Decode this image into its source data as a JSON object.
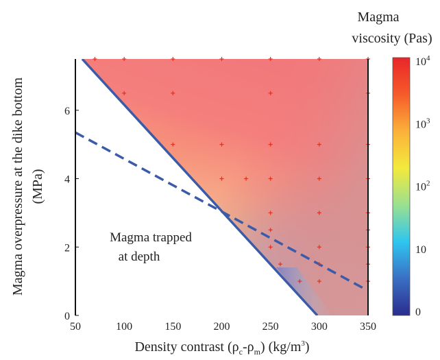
{
  "chart_data": {
    "type": "heatmap",
    "xlabel": {
      "prefix": "Density contrast (",
      "rho1": "ρ",
      "sub1": "c",
      "dash": "-",
      "rho2": "ρ",
      "sub2": "m",
      "suffix": ") (kg/m",
      "sup": "3",
      "close": ")"
    },
    "ylabel": {
      "line1": "Magma overpressure at the dike bottom",
      "line2": "(MPa)"
    },
    "xlim": [
      50,
      350
    ],
    "ylim": [
      0,
      7.5
    ],
    "x_ticks": [
      "50",
      "100",
      "150",
      "200",
      "250",
      "300",
      "350"
    ],
    "y_ticks": [
      "0",
      "2",
      "4",
      "6"
    ],
    "colorbar": {
      "title_line1": "Magma",
      "title_line2": "viscosity (Pas)",
      "scale": "log",
      "labels": [
        {
          "text": "0",
          "exp": "",
          "level": 0
        },
        {
          "text": "10",
          "exp": "",
          "level": 1
        },
        {
          "text": "10",
          "exp": "2",
          "level": 2
        },
        {
          "text": "10",
          "exp": "3",
          "level": 3
        },
        {
          "text": "10",
          "exp": "4",
          "level": 4
        }
      ],
      "colors": [
        "#2b2c8c",
        "#3a6fc4",
        "#2fc6ef",
        "#9be08f",
        "#f3ea3c",
        "#fbb13a",
        "#f65b2a",
        "#e8252a"
      ]
    },
    "annotation": {
      "line1": "Magma trapped",
      "line2": "at depth"
    },
    "boundaries": [
      {
        "style": "solid",
        "color": "#3b5aa8",
        "points": [
          [
            57,
            7.5
          ],
          [
            298,
            0
          ]
        ]
      },
      {
        "style": "dashed",
        "color": "#3b5aa8",
        "points": [
          [
            50,
            5.35
          ],
          [
            345,
            0.8
          ]
        ]
      }
    ],
    "sample_points": [
      [
        70,
        7.5
      ],
      [
        100,
        7.5
      ],
      [
        150,
        7.5
      ],
      [
        200,
        7.5
      ],
      [
        250,
        7.5
      ],
      [
        300,
        7.5
      ],
      [
        350,
        7.5
      ],
      [
        100,
        6.5
      ],
      [
        150,
        6.5
      ],
      [
        250,
        6.5
      ],
      [
        350,
        6.5
      ],
      [
        150,
        5
      ],
      [
        200,
        5
      ],
      [
        250,
        5
      ],
      [
        300,
        5
      ],
      [
        350,
        5
      ],
      [
        200,
        4
      ],
      [
        225,
        4
      ],
      [
        250,
        4
      ],
      [
        300,
        4
      ],
      [
        350,
        4
      ],
      [
        250,
        3
      ],
      [
        300,
        3
      ],
      [
        350,
        3
      ],
      [
        250,
        2.5
      ],
      [
        350,
        2.5
      ],
      [
        250,
        2
      ],
      [
        300,
        2
      ],
      [
        350,
        2
      ],
      [
        260,
        1.5
      ],
      [
        300,
        1.5
      ],
      [
        350,
        1.5
      ],
      [
        280,
        1
      ],
      [
        300,
        1
      ],
      [
        350,
        1
      ]
    ]
  }
}
